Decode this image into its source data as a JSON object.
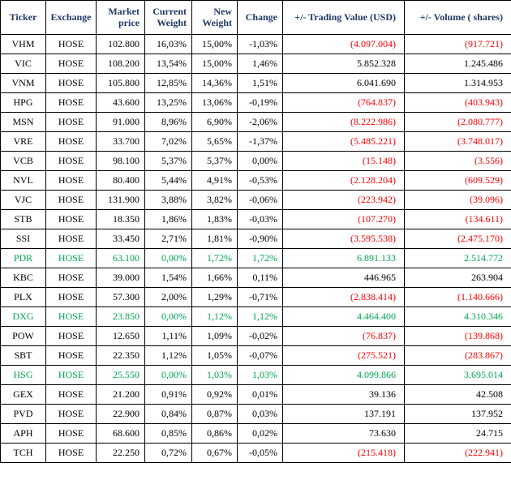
{
  "table": {
    "columns": [
      {
        "key": "ticker",
        "label": "Ticker",
        "class": "col-ticker"
      },
      {
        "key": "exchange",
        "label": "Exchange",
        "class": "col-exchange"
      },
      {
        "key": "market_price",
        "label": "Market price",
        "class": "col-mktprice"
      },
      {
        "key": "current_weight",
        "label": "Current Weight",
        "class": "col-cweight"
      },
      {
        "key": "new_weight",
        "label": "New Weight",
        "class": "col-nweight"
      },
      {
        "key": "change",
        "label": "Change",
        "class": "col-change"
      },
      {
        "key": "trading_value",
        "label": "+/- Trading Value (USD)",
        "class": "col-tvalue"
      },
      {
        "key": "volume",
        "label": "+/- Volume ( shares)",
        "class": "col-volume"
      }
    ],
    "rows": [
      {
        "ticker": "VHM",
        "exchange": "HOSE",
        "market_price": "102.800",
        "current_weight": "16,03%",
        "new_weight": "15,00%",
        "change": "-1,03%",
        "trading_value": "(4.097.004)",
        "trading_value_neg": true,
        "volume": "(917.721)",
        "volume_neg": true,
        "green": false
      },
      {
        "ticker": "VIC",
        "exchange": "HOSE",
        "market_price": "108.200",
        "current_weight": "13,54%",
        "new_weight": "15,00%",
        "change": "1,46%",
        "trading_value": "5.852.328",
        "trading_value_neg": false,
        "volume": "1.245.486",
        "volume_neg": false,
        "green": false
      },
      {
        "ticker": "VNM",
        "exchange": "HOSE",
        "market_price": "105.800",
        "current_weight": "12,85%",
        "new_weight": "14,36%",
        "change": "1,51%",
        "trading_value": "6.041.690",
        "trading_value_neg": false,
        "volume": "1.314.953",
        "volume_neg": false,
        "green": false
      },
      {
        "ticker": "HPG",
        "exchange": "HOSE",
        "market_price": "43.600",
        "current_weight": "13,25%",
        "new_weight": "13,06%",
        "change": "-0,19%",
        "trading_value": "(764.837)",
        "trading_value_neg": true,
        "volume": "(403.943)",
        "volume_neg": true,
        "green": false
      },
      {
        "ticker": "MSN",
        "exchange": "HOSE",
        "market_price": "91.000",
        "current_weight": "8,96%",
        "new_weight": "6,90%",
        "change": "-2,06%",
        "trading_value": "(8.222.986)",
        "trading_value_neg": true,
        "volume": "(2.080.777)",
        "volume_neg": true,
        "green": false
      },
      {
        "ticker": "VRE",
        "exchange": "HOSE",
        "market_price": "33.700",
        "current_weight": "7,02%",
        "new_weight": "5,65%",
        "change": "-1,37%",
        "trading_value": "(5.485.221)",
        "trading_value_neg": true,
        "volume": "(3.748.017)",
        "volume_neg": true,
        "green": false
      },
      {
        "ticker": "VCB",
        "exchange": "HOSE",
        "market_price": "98.100",
        "current_weight": "5,37%",
        "new_weight": "5,37%",
        "change": "0,00%",
        "trading_value": "(15.148)",
        "trading_value_neg": true,
        "volume": "(3.556)",
        "volume_neg": true,
        "green": false
      },
      {
        "ticker": "NVL",
        "exchange": "HOSE",
        "market_price": "80.400",
        "current_weight": "5,44%",
        "new_weight": "4,91%",
        "change": "-0,53%",
        "trading_value": "(2.128.204)",
        "trading_value_neg": true,
        "volume": "(609.529)",
        "volume_neg": true,
        "green": false
      },
      {
        "ticker": "VJC",
        "exchange": "HOSE",
        "market_price": "131.900",
        "current_weight": "3,88%",
        "new_weight": "3,82%",
        "change": "-0,06%",
        "trading_value": "(223.942)",
        "trading_value_neg": true,
        "volume": "(39.096)",
        "volume_neg": true,
        "green": false
      },
      {
        "ticker": "STB",
        "exchange": "HOSE",
        "market_price": "18.350",
        "current_weight": "1,86%",
        "new_weight": "1,83%",
        "change": "-0,03%",
        "trading_value": "(107.270)",
        "trading_value_neg": true,
        "volume": "(134.611)",
        "volume_neg": true,
        "green": false
      },
      {
        "ticker": "SSI",
        "exchange": "HOSE",
        "market_price": "33.450",
        "current_weight": "2,71%",
        "new_weight": "1,81%",
        "change": "-0,90%",
        "trading_value": "(3.595.538)",
        "trading_value_neg": true,
        "volume": "(2.475.170)",
        "volume_neg": true,
        "green": false
      },
      {
        "ticker": "PDR",
        "exchange": "HOSE",
        "market_price": "63.100",
        "current_weight": "0,00%",
        "new_weight": "1,72%",
        "change": "1,72%",
        "trading_value": "6.891.133",
        "trading_value_neg": false,
        "volume": "2.514.772",
        "volume_neg": false,
        "green": true
      },
      {
        "ticker": "KBC",
        "exchange": "HOSE",
        "market_price": "39.000",
        "current_weight": "1,54%",
        "new_weight": "1,66%",
        "change": "0,11%",
        "trading_value": "446.965",
        "trading_value_neg": false,
        "volume": "263.904",
        "volume_neg": false,
        "green": false
      },
      {
        "ticker": "PLX",
        "exchange": "HOSE",
        "market_price": "57.300",
        "current_weight": "2,00%",
        "new_weight": "1,29%",
        "change": "-0,71%",
        "trading_value": "(2.838.414)",
        "trading_value_neg": true,
        "volume": "(1.140.666)",
        "volume_neg": true,
        "green": false
      },
      {
        "ticker": "DXG",
        "exchange": "HOSE",
        "market_price": "23.850",
        "current_weight": "0,00%",
        "new_weight": "1,12%",
        "change": "1,12%",
        "trading_value": "4.464.400",
        "trading_value_neg": false,
        "volume": "4.310.346",
        "volume_neg": false,
        "green": true
      },
      {
        "ticker": "POW",
        "exchange": "HOSE",
        "market_price": "12.650",
        "current_weight": "1,11%",
        "new_weight": "1,09%",
        "change": "-0,02%",
        "trading_value": "(76.837)",
        "trading_value_neg": true,
        "volume": "(139.868)",
        "volume_neg": true,
        "green": false
      },
      {
        "ticker": "SBT",
        "exchange": "HOSE",
        "market_price": "22.350",
        "current_weight": "1,12%",
        "new_weight": "1,05%",
        "change": "-0,07%",
        "trading_value": "(275.521)",
        "trading_value_neg": true,
        "volume": "(283.867)",
        "volume_neg": true,
        "green": false
      },
      {
        "ticker": "HSG",
        "exchange": "HOSE",
        "market_price": "25.550",
        "current_weight": "0,00%",
        "new_weight": "1,03%",
        "change": "1,03%",
        "trading_value": "4.099.866",
        "trading_value_neg": false,
        "volume": "3.695.014",
        "volume_neg": false,
        "green": true
      },
      {
        "ticker": "GEX",
        "exchange": "HOSE",
        "market_price": "21.200",
        "current_weight": "0,91%",
        "new_weight": "0,92%",
        "change": "0,01%",
        "trading_value": "39.136",
        "trading_value_neg": false,
        "volume": "42.508",
        "volume_neg": false,
        "green": false
      },
      {
        "ticker": "PVD",
        "exchange": "HOSE",
        "market_price": "22.900",
        "current_weight": "0,84%",
        "new_weight": "0,87%",
        "change": "0,03%",
        "trading_value": "137.191",
        "trading_value_neg": false,
        "volume": "137.952",
        "volume_neg": false,
        "green": false
      },
      {
        "ticker": "APH",
        "exchange": "HOSE",
        "market_price": "68.600",
        "current_weight": "0,85%",
        "new_weight": "0,86%",
        "change": "0,02%",
        "trading_value": "73.630",
        "trading_value_neg": false,
        "volume": "24.715",
        "volume_neg": false,
        "green": false
      },
      {
        "ticker": "TCH",
        "exchange": "HOSE",
        "market_price": "22.250",
        "current_weight": "0,72%",
        "new_weight": "0,67%",
        "change": "-0,05%",
        "trading_value": "(215.418)",
        "trading_value_neg": true,
        "volume": "(222.941)",
        "volume_neg": true,
        "green": false
      }
    ],
    "header_color": "#1f3864",
    "neg_color": "#ff0000",
    "pos_green_color": "#00a651",
    "border_color": "#000000",
    "background_color": "#ffffff",
    "font_family": "Times New Roman"
  }
}
